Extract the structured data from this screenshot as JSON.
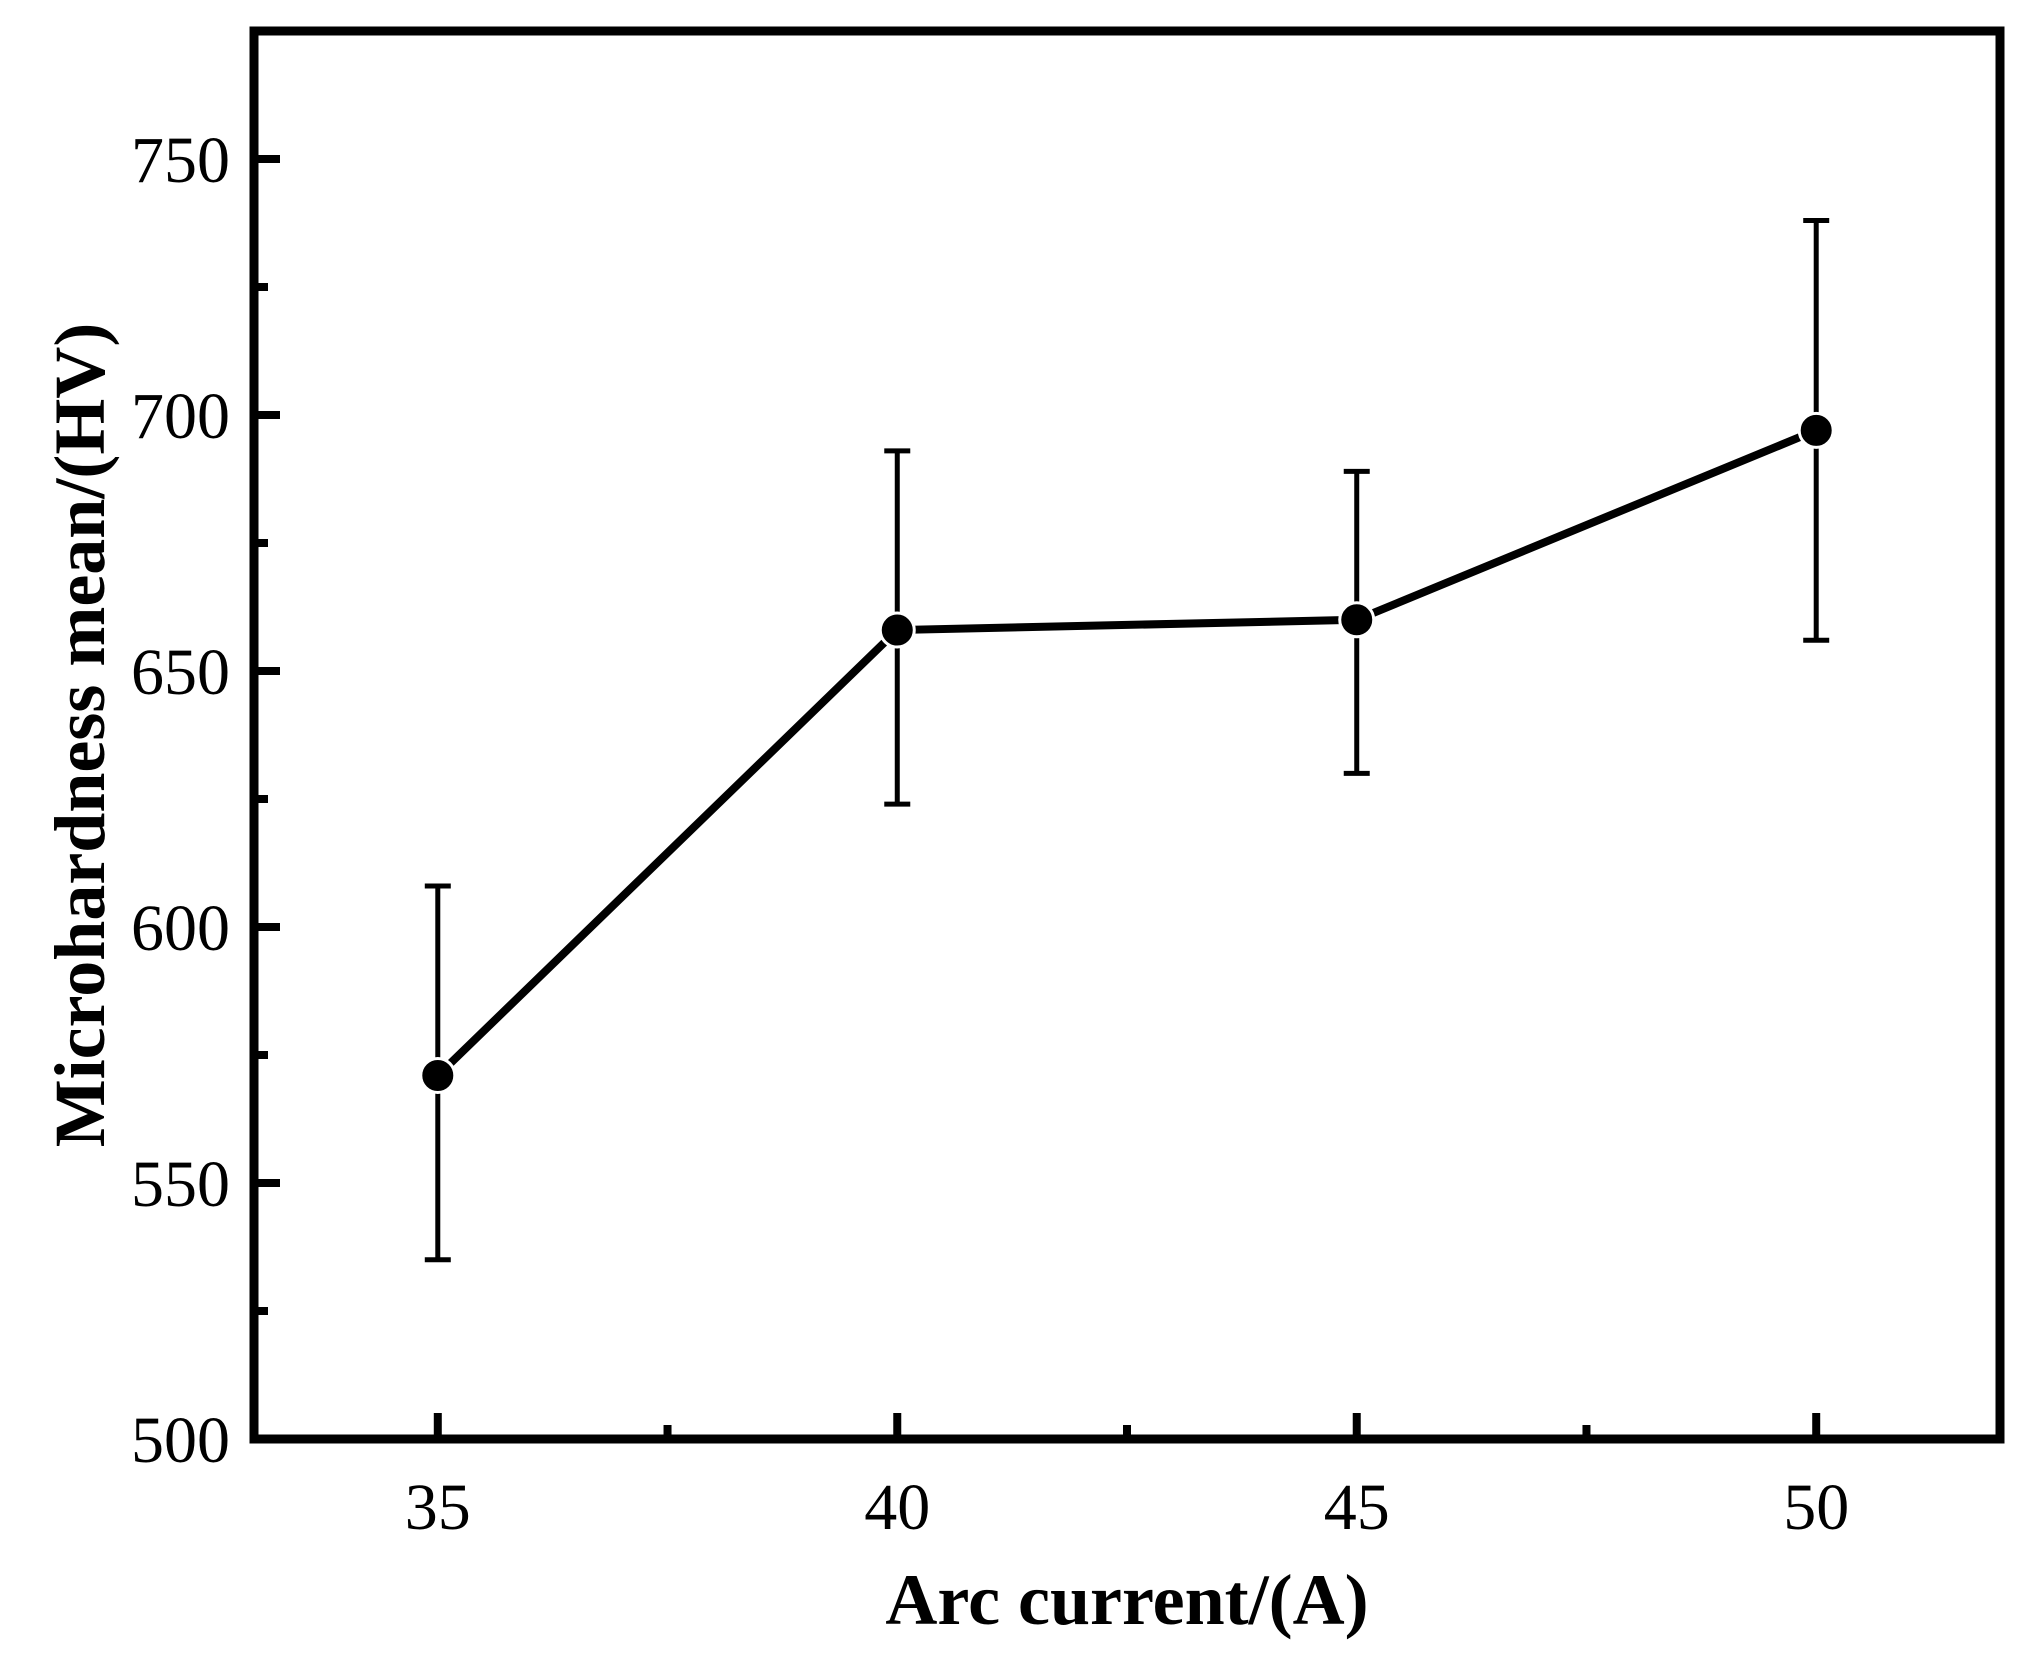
{
  "chart_data": {
    "type": "line",
    "xlabel": "Arc current/(A)",
    "ylabel": "Microhardness mean/(HV)",
    "xlim": [
      33,
      52
    ],
    "ylim": [
      500,
      775
    ],
    "x_ticks": [
      35,
      40,
      45,
      50
    ],
    "x_minor_ticks": [
      37.5,
      42.5,
      47.5
    ],
    "y_ticks": [
      500,
      550,
      600,
      650,
      700,
      750
    ],
    "y_minor_ticks": [
      525,
      575,
      625,
      675,
      725
    ],
    "grid": false,
    "series": [
      {
        "x": [
          35,
          40,
          45,
          50
        ],
        "y": [
          571,
          658,
          660,
          697
        ],
        "error_low": [
          535,
          624,
          630,
          656
        ],
        "error_high": [
          608,
          693,
          689,
          738
        ],
        "marker": "circle",
        "color": "#000000"
      }
    ]
  }
}
